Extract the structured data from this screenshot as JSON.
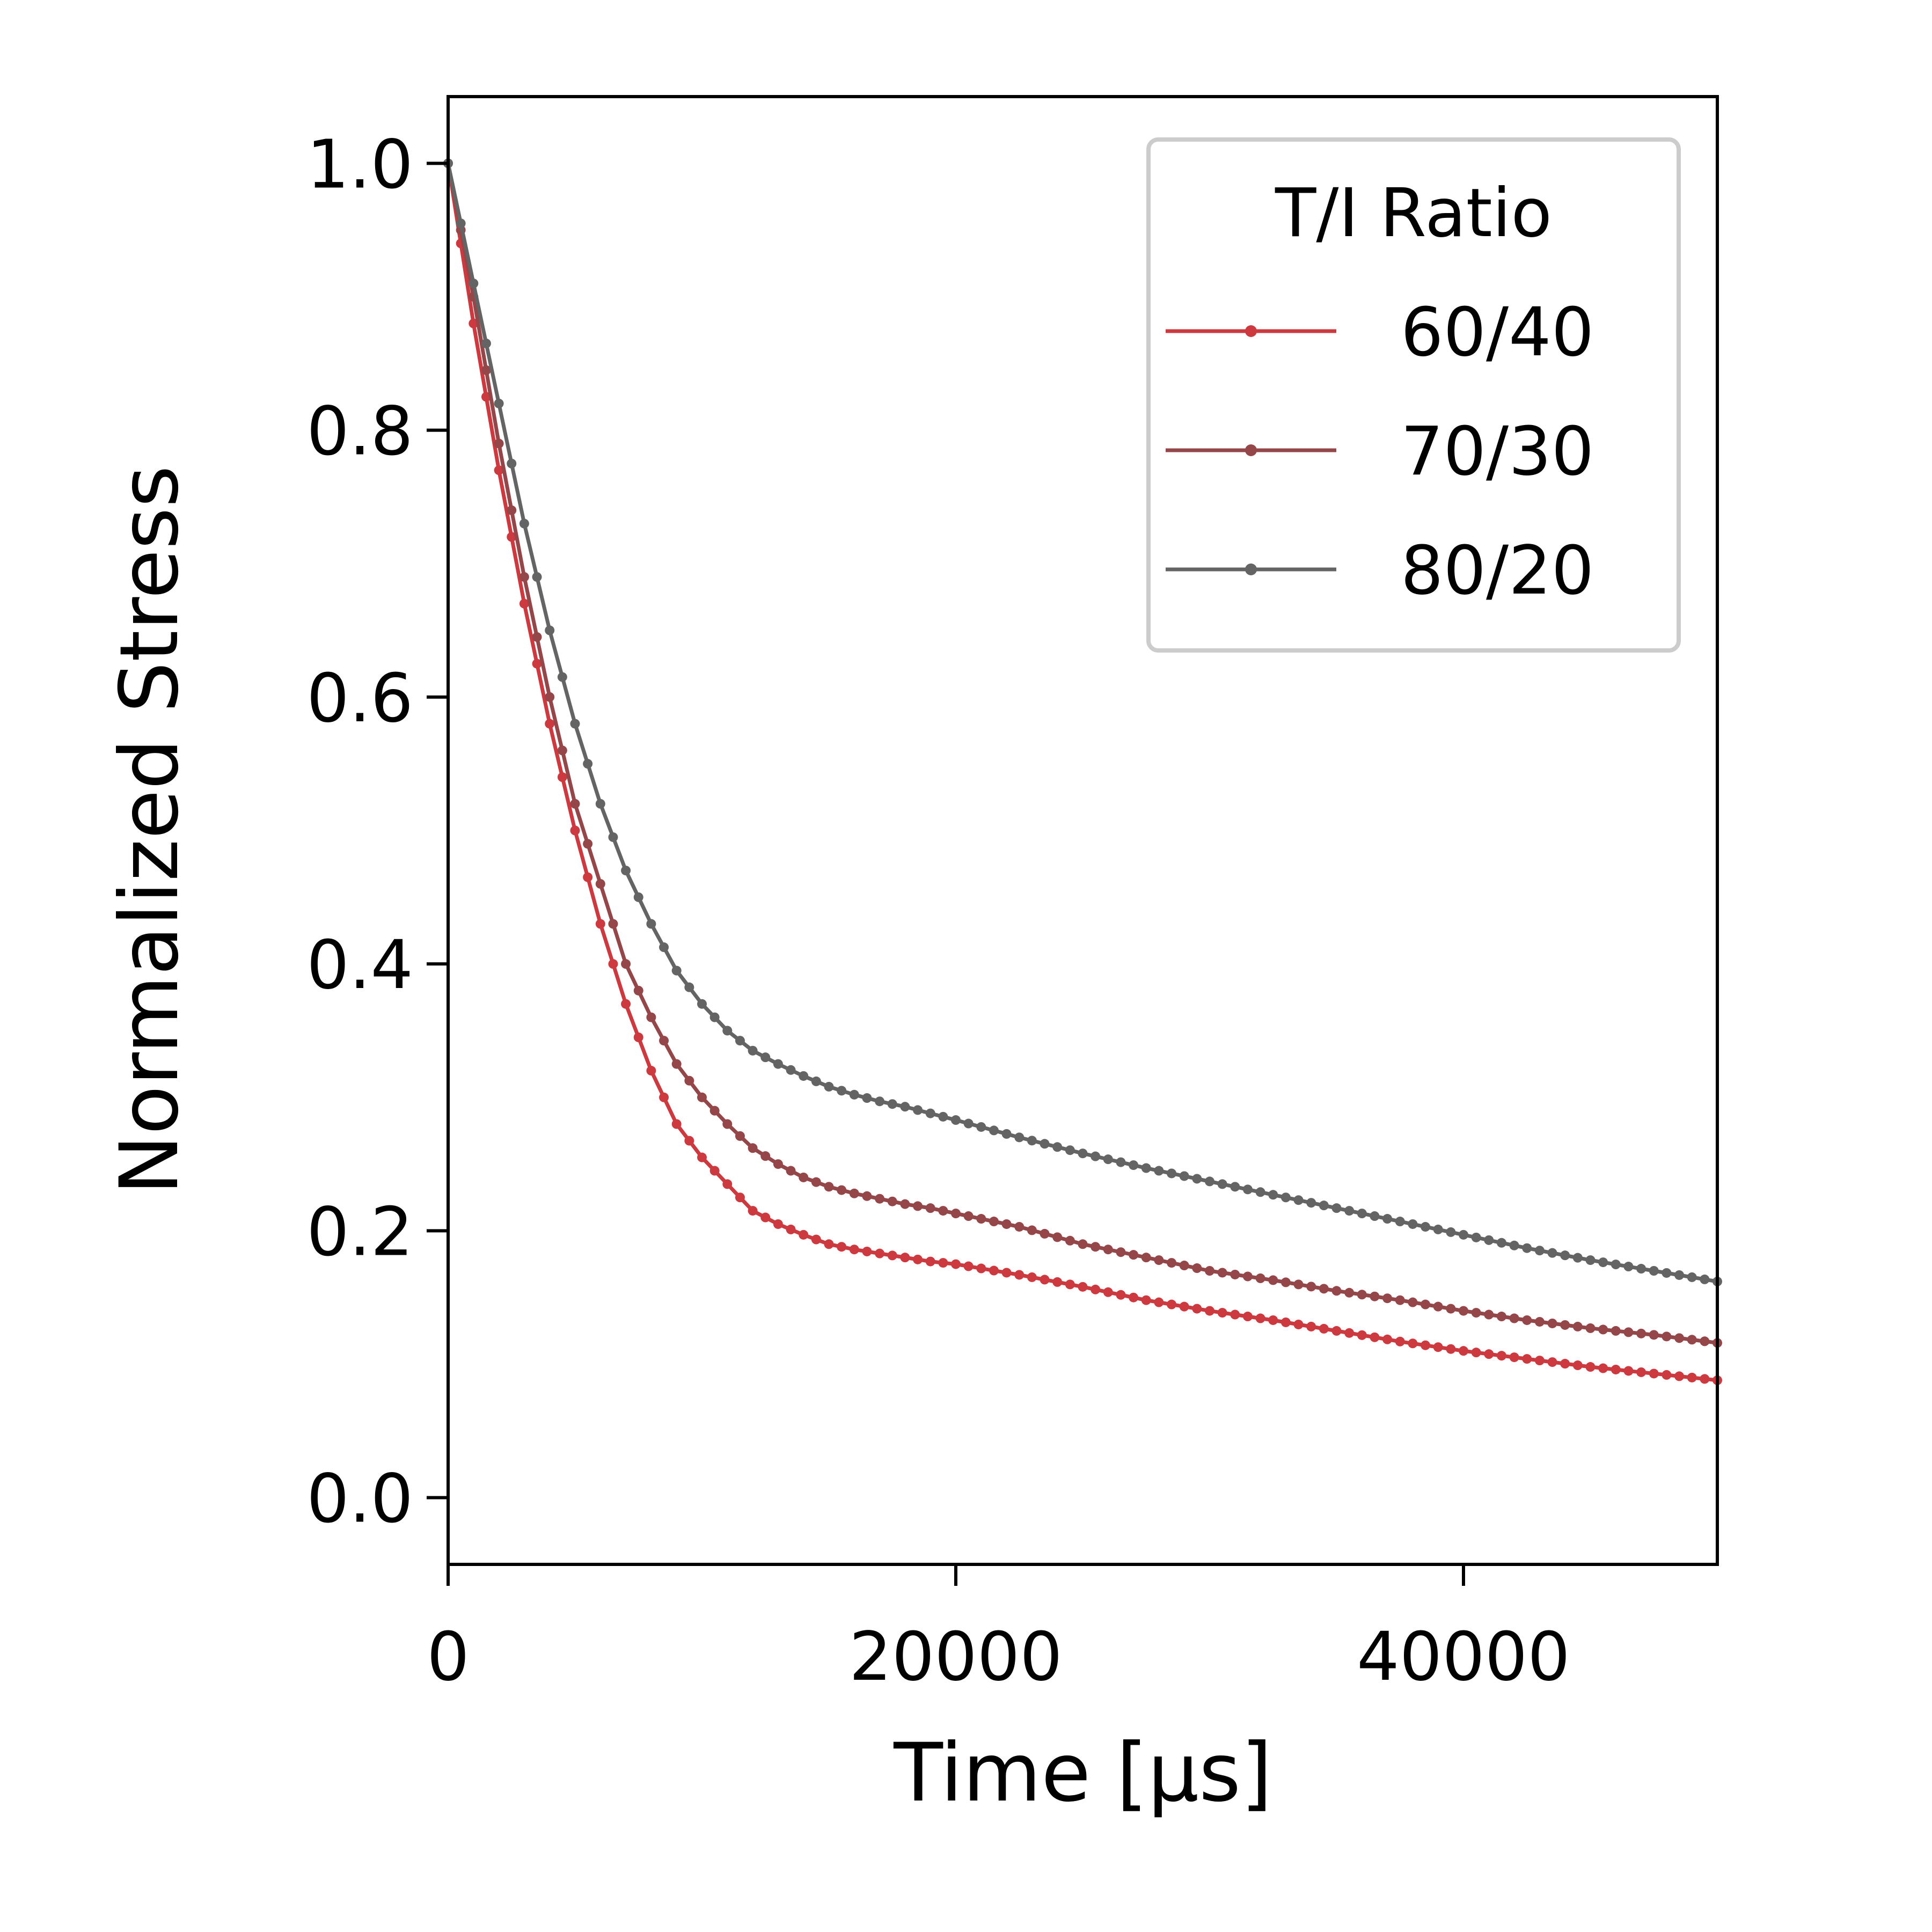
{
  "chart_data": {
    "type": "line",
    "title": "",
    "xlabel": "Time [μs]",
    "ylabel": "Normalized Stress",
    "xlim": [
      0,
      50000
    ],
    "ylim": [
      -0.05,
      1.05
    ],
    "x_ticks": [
      0,
      20000,
      40000
    ],
    "x_tick_labels": [
      "0",
      "20000",
      "40000"
    ],
    "y_ticks": [
      0.0,
      0.2,
      0.4,
      0.6,
      0.8,
      1.0
    ],
    "y_tick_labels": [
      "0.0",
      "0.2",
      "0.4",
      "0.6",
      "0.8",
      "1.0"
    ],
    "grid": false,
    "legend": {
      "title": "T/I Ratio",
      "placement": "top-right"
    },
    "marker": "small-dot",
    "x": [
      0,
      1000,
      2000,
      3000,
      4000,
      5000,
      6000,
      7000,
      8000,
      9000,
      10000,
      11000,
      12000,
      13000,
      14000,
      15000,
      16000,
      17000,
      18000,
      19000,
      20000,
      22500,
      25000,
      27500,
      30000,
      32500,
      35000,
      37500,
      40000,
      42500,
      45000,
      47500,
      50000
    ],
    "series": [
      {
        "name": "60/40",
        "color": "#cc3a3f",
        "values": [
          1.0,
          0.88,
          0.77,
          0.67,
          0.58,
          0.5,
          0.43,
          0.37,
          0.32,
          0.28,
          0.255,
          0.235,
          0.215,
          0.205,
          0.197,
          0.19,
          0.186,
          0.183,
          0.18,
          0.177,
          0.175,
          0.167,
          0.158,
          0.148,
          0.14,
          0.133,
          0.125,
          0.117,
          0.11,
          0.104,
          0.098,
          0.093,
          0.088
        ]
      },
      {
        "name": "70/30",
        "color": "#944649",
        "values": [
          1.0,
          0.9,
          0.79,
          0.69,
          0.6,
          0.52,
          0.46,
          0.4,
          0.36,
          0.325,
          0.3,
          0.28,
          0.262,
          0.25,
          0.24,
          0.233,
          0.228,
          0.224,
          0.22,
          0.217,
          0.213,
          0.203,
          0.19,
          0.18,
          0.17,
          0.163,
          0.155,
          0.148,
          0.14,
          0.133,
          0.127,
          0.122,
          0.116
        ]
      },
      {
        "name": "80/20",
        "color": "#646464",
        "values": [
          1.0,
          0.91,
          0.82,
          0.73,
          0.65,
          0.58,
          0.52,
          0.47,
          0.43,
          0.395,
          0.37,
          0.35,
          0.335,
          0.325,
          0.316,
          0.308,
          0.302,
          0.297,
          0.293,
          0.288,
          0.283,
          0.27,
          0.258,
          0.247,
          0.237,
          0.227,
          0.217,
          0.207,
          0.197,
          0.187,
          0.178,
          0.17,
          0.162
        ]
      }
    ]
  }
}
